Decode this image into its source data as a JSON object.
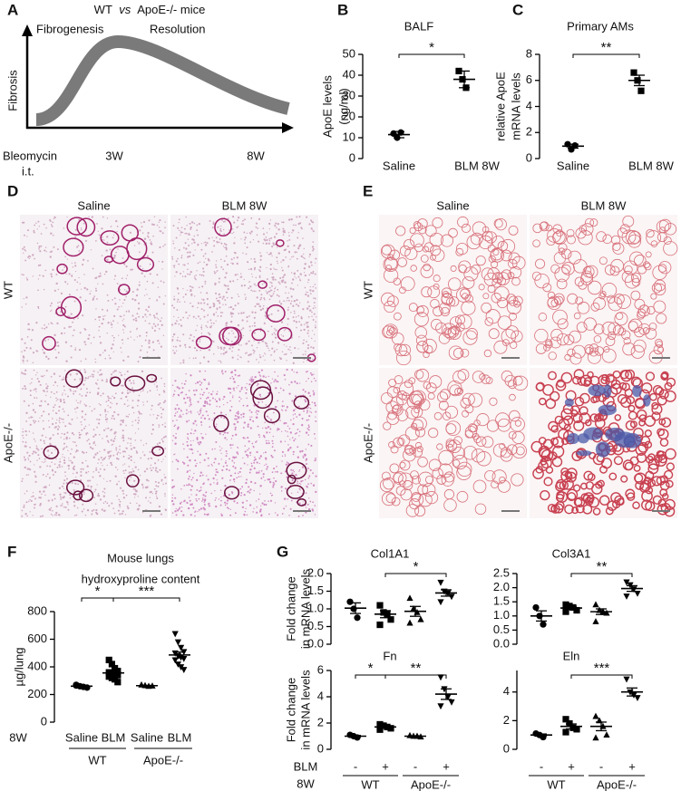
{
  "schematic": {
    "panel": "A",
    "title": [
      "WT",
      "vs",
      "ApoE-/- mice"
    ],
    "phases": [
      "Fibrogenesis",
      "Resolution"
    ],
    "ylabel": "Fibrosis",
    "xlabels": [
      "Bleomycin",
      "i.t.",
      "3W",
      "8W"
    ]
  },
  "micrographs": [
    {
      "panel": "D",
      "columns": [
        "Saline",
        "BLM 8W"
      ],
      "rows": [
        "WT",
        "ApoE-/-"
      ]
    },
    {
      "panel": "E",
      "columns": [
        "Saline",
        "BLM 8W"
      ],
      "rows": [
        "WT",
        "ApoE-/-"
      ]
    }
  ],
  "chart_data": [
    {
      "type": "dot",
      "panel": "B",
      "title": "BALF",
      "ylabel": [
        "ApoE levels",
        "(ng/ml)"
      ],
      "ylim": [
        0,
        50
      ],
      "yticks": [
        0,
        10,
        20,
        30,
        40,
        50
      ],
      "groups": [
        {
          "label": "Saline",
          "marker": "circle",
          "points": [
            12,
            10,
            12.5
          ],
          "mean": 11.5,
          "sem": 1.5
        },
        {
          "label": "BLM 8W",
          "marker": "square",
          "points": [
            42,
            38,
            34
          ],
          "mean": 38,
          "sem": 4
        }
      ],
      "brackets": [
        {
          "label": "*"
        }
      ]
    },
    {
      "type": "dot",
      "panel": "C",
      "title": "Primary AMs",
      "ylabel": [
        "relative ApoE",
        "mRNA levels"
      ],
      "ylim": [
        0,
        8
      ],
      "yticks": [
        0,
        2,
        4,
        6,
        8
      ],
      "groups": [
        {
          "label": "Saline",
          "marker": "circle",
          "points": [
            1.1,
            0.7,
            1.0
          ],
          "mean": 0.95,
          "sem": 0.15
        },
        {
          "label": "BLM 8W",
          "marker": "square",
          "points": [
            6.6,
            6.0,
            5.2
          ],
          "mean": 6.0,
          "sem": 0.4
        }
      ],
      "brackets": [
        {
          "label": "**"
        }
      ]
    },
    {
      "type": "dot",
      "panel": "F",
      "title": [
        "Mouse lungs",
        "hydroxyproline content"
      ],
      "ylabel": [
        "µg/lung"
      ],
      "ylim": [
        0,
        800
      ],
      "yticks": [
        0,
        200,
        400,
        600,
        800
      ],
      "row_labels": [
        "8W"
      ],
      "group_labels": [
        "WT",
        "ApoE-/-"
      ],
      "groups": [
        {
          "label": "Saline",
          "marker": "circle",
          "points": [
            270,
            260,
            255,
            250,
            265
          ],
          "mean": 260,
          "sem": 4
        },
        {
          "label": "BLM",
          "marker": "square",
          "points": [
            450,
            420,
            390,
            370,
            360,
            350,
            345,
            340,
            330,
            320,
            310,
            290
          ],
          "mean": 356,
          "sem": 13
        },
        {
          "label": "Saline",
          "marker": "triangle-up",
          "points": [
            270,
            265,
            260,
            262
          ],
          "mean": 264,
          "sem": 2
        },
        {
          "label": "BLM",
          "marker": "triangle-down",
          "points": [
            640,
            580,
            540,
            510,
            500,
            480,
            470,
            460,
            450,
            420,
            400,
            380
          ],
          "mean": 486,
          "sem": 21
        }
      ],
      "brackets": [
        {
          "label": "*"
        },
        {
          "label": "***"
        }
      ]
    },
    {
      "type": "dot",
      "panel": "G",
      "title": "Col1A1",
      "ylabel": [
        "Fold change",
        "in mRNA levels"
      ],
      "ylim": [
        0,
        2
      ],
      "yticks": [
        {
          "value": 0,
          "label": "0.0"
        },
        0.5,
        {
          "value": 1,
          "label": "1.0"
        },
        1.5,
        {
          "value": 2,
          "label": "2.0"
        }
      ],
      "groups": [
        {
          "marker": "circle",
          "points": [
            1.2,
            1.0,
            0.75
          ],
          "mean": 1.02,
          "sem": 0.15
        },
        {
          "marker": "square",
          "points": [
            1.1,
            0.9,
            0.85,
            0.7,
            0.55
          ],
          "mean": 0.85,
          "sem": 0.1
        },
        {
          "marker": "triangle-up",
          "points": [
            1.3,
            1.0,
            0.9,
            0.7,
            0.6
          ],
          "mean": 0.93,
          "sem": 0.14
        },
        {
          "marker": "triangle-down",
          "points": [
            1.75,
            1.5,
            1.45,
            1.35,
            1.2
          ],
          "mean": 1.45,
          "sem": 0.09
        }
      ],
      "brackets": [
        {
          "label": "*"
        }
      ]
    },
    {
      "type": "dot",
      "title": "Col3A1",
      "ylim": [
        0,
        2.5
      ],
      "yticks": [
        {
          "value": 0,
          "label": "0.0"
        },
        0.5,
        {
          "value": 1,
          "label": "1.0"
        },
        1.5,
        {
          "value": 2,
          "label": "2.0"
        },
        2.5
      ],
      "groups": [
        {
          "marker": "circle",
          "points": [
            1.3,
            1.0,
            0.7
          ],
          "mean": 1.0,
          "sem": 0.18
        },
        {
          "marker": "square",
          "points": [
            1.4,
            1.35,
            1.3,
            1.2,
            1.15
          ],
          "mean": 1.28,
          "sem": 0.06
        },
        {
          "marker": "triangle-up",
          "points": [
            1.4,
            1.2,
            1.15,
            1.1,
            0.8
          ],
          "mean": 1.15,
          "sem": 0.1
        },
        {
          "marker": "triangle-down",
          "points": [
            2.2,
            2.1,
            1.95,
            1.8,
            1.7
          ],
          "mean": 1.97,
          "sem": 0.1
        }
      ],
      "brackets": [
        {
          "label": "**"
        }
      ]
    },
    {
      "type": "dot",
      "title": "Fn",
      "ylabel": [
        "Fold change",
        "in mRNA levels"
      ],
      "ylim": [
        0,
        6
      ],
      "yticks": [
        0,
        2,
        4,
        6
      ],
      "row_labels": [
        "BLM",
        "8W"
      ],
      "group_labels": [
        "WT",
        "ApoE-/-"
      ],
      "groups": [
        {
          "label": "-",
          "marker": "circle",
          "points": [
            1.1,
            1.0,
            0.9
          ],
          "mean": 1.0,
          "sem": 0.06
        },
        {
          "label": "+",
          "marker": "square",
          "points": [
            1.9,
            1.8,
            1.7,
            1.6,
            1.5
          ],
          "mean": 1.7,
          "sem": 0.1
        },
        {
          "label": "-",
          "marker": "triangle-up",
          "points": [
            1.05,
            1.0,
            1.0,
            0.95
          ],
          "mean": 1.0,
          "sem": 0.03
        },
        {
          "label": "+",
          "marker": "triangle-down",
          "points": [
            5.5,
            4.6,
            4.0,
            3.6,
            3.3
          ],
          "mean": 4.2,
          "sem": 0.4
        }
      ],
      "brackets": [
        {
          "label": "*"
        },
        {
          "label": "**"
        }
      ]
    },
    {
      "type": "dot",
      "title": "Eln",
      "ylim": [
        0,
        5.5
      ],
      "yticks": [
        0,
        2,
        4
      ],
      "group_labels": [
        "WT",
        "ApoE-/-"
      ],
      "groups": [
        {
          "label": "-",
          "marker": "circle",
          "points": [
            1.1,
            1.0,
            0.85
          ],
          "mean": 1.0,
          "sem": 0.07
        },
        {
          "label": "+",
          "marker": "square",
          "points": [
            2.1,
            1.8,
            1.5,
            1.4,
            1.2
          ],
          "mean": 1.6,
          "sem": 0.17
        },
        {
          "label": "-",
          "marker": "triangle-up",
          "points": [
            2.3,
            2.0,
            1.6,
            1.0,
            0.8
          ],
          "mean": 1.6,
          "sem": 0.3
        },
        {
          "label": "+",
          "marker": "triangle-down",
          "points": [
            4.9,
            4.0,
            3.8,
            3.6
          ],
          "mean": 4.0,
          "sem": 0.28
        }
      ],
      "brackets": [
        {
          "label": "***"
        }
      ]
    }
  ]
}
